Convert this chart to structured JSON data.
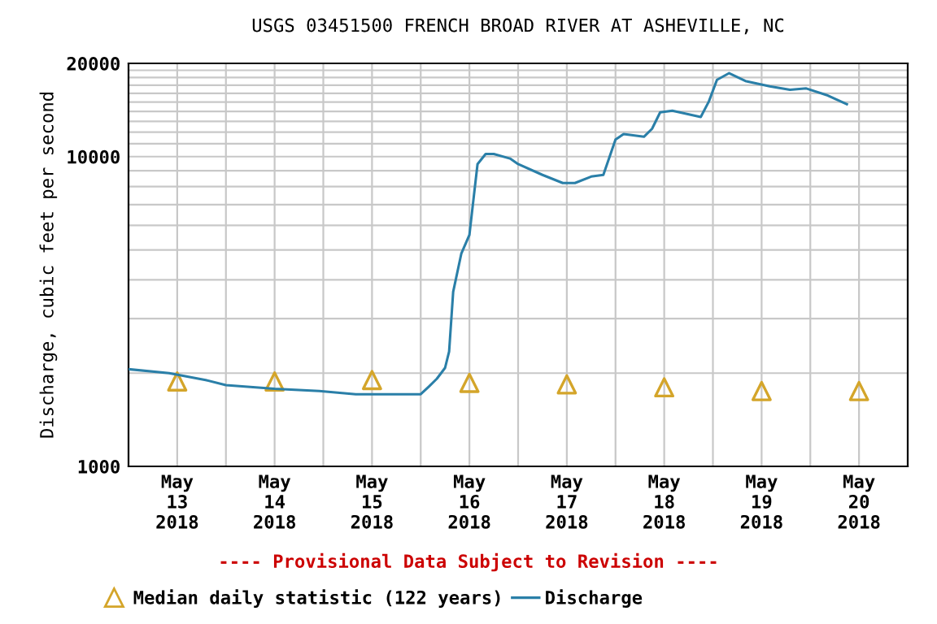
{
  "chart_data": {
    "type": "line",
    "title": "USGS 03451500 FRENCH BROAD RIVER AT ASHEVILLE, NC",
    "ylabel": "Discharge, cubic feet per second",
    "annotations": [
      "---- Provisional Data Subject to Revision ----"
    ],
    "log": "y",
    "grid": true,
    "legend": "bottom",
    "xlim": [
      "2018-05-13T00:00",
      "2018-05-21T00:00"
    ],
    "xticks": [
      {
        "value": "2018-05-13T12:00",
        "label": "May\n13\n2018"
      },
      {
        "value": "2018-05-14T12:00",
        "label": "May\n14\n2018"
      },
      {
        "value": "2018-05-15T12:00",
        "label": "May\n15\n2018"
      },
      {
        "value": "2018-05-16T12:00",
        "label": "May\n16\n2018"
      },
      {
        "value": "2018-05-17T12:00",
        "label": "May\n17\n2018"
      },
      {
        "value": "2018-05-18T12:00",
        "label": "May\n18\n2018"
      },
      {
        "value": "2018-05-19T12:00",
        "label": "May\n19\n2018"
      },
      {
        "value": "2018-05-20T12:00",
        "label": "May\n20\n2018"
      },
      {
        "value": "2018-05-14T00:00",
        "label": null
      },
      {
        "value": "2018-05-15T00:00",
        "label": null
      },
      {
        "value": "2018-05-16T00:00",
        "label": null
      },
      {
        "value": "2018-05-17T00:00",
        "label": null
      },
      {
        "value": "2018-05-18T00:00",
        "label": null
      },
      {
        "value": "2018-05-19T00:00",
        "label": null
      },
      {
        "value": "2018-05-20T00:00",
        "label": null
      }
    ],
    "ylim": [
      1000,
      20000
    ],
    "yticks": [
      1000,
      {
        "value": 2000,
        "label": null
      },
      {
        "value": 3000,
        "label": null
      },
      {
        "value": 4000,
        "label": null
      },
      {
        "value": 5000,
        "label": null
      },
      {
        "value": 6000,
        "label": null
      },
      {
        "value": 7000,
        "label": null
      },
      {
        "value": 8000,
        "label": null
      },
      {
        "value": 9000,
        "label": null
      },
      10000,
      {
        "value": 11000,
        "label": null
      },
      {
        "value": 12000,
        "label": null
      },
      {
        "value": 13000,
        "label": null
      },
      {
        "value": 14000,
        "label": null
      },
      {
        "value": 15000,
        "label": null
      },
      {
        "value": 16000,
        "label": null
      },
      {
        "value": 17000,
        "label": null
      },
      {
        "value": 18000,
        "label": null
      },
      {
        "value": 19000,
        "label": null
      },
      20000
    ],
    "series": [
      {
        "name": "Median daily statistic (122 years)",
        "type": "scatter",
        "marker": "triangle",
        "color": "#d4a52a",
        "x": [
          "2018-05-13T12:00",
          "2018-05-14T12:00",
          "2018-05-15T12:00",
          "2018-05-16T12:00",
          "2018-05-17T12:00",
          "2018-05-18T12:00",
          "2018-05-19T12:00",
          "2018-05-20T12:00"
        ],
        "values": [
          1880,
          1880,
          1900,
          1860,
          1840,
          1800,
          1750,
          1750
        ]
      },
      {
        "name": "Discharge",
        "color": "#2a7fa8",
        "x": [
          "2018-05-13T00:00",
          "2018-05-13T10:00",
          "2018-05-13T19:00",
          "2018-05-14T00:00",
          "2018-05-14T12:00",
          "2018-05-14T23:00",
          "2018-05-15T08:00",
          "2018-05-16T00:00",
          "2018-05-16T02:00",
          "2018-05-16T04:00",
          "2018-05-16T06:00",
          "2018-05-16T07:00",
          "2018-05-16T08:00",
          "2018-05-16T10:00",
          "2018-05-16T12:00",
          "2018-05-16T13:00",
          "2018-05-16T14:00",
          "2018-05-16T16:00",
          "2018-05-16T18:00",
          "2018-05-16T22:00",
          "2018-05-17T00:00",
          "2018-05-17T06:00",
          "2018-05-17T11:00",
          "2018-05-17T14:00",
          "2018-05-17T18:00",
          "2018-05-17T21:00",
          "2018-05-18T00:00",
          "2018-05-18T02:00",
          "2018-05-18T07:00",
          "2018-05-18T09:00",
          "2018-05-18T11:00",
          "2018-05-18T14:00",
          "2018-05-18T21:00",
          "2018-05-18T23:00",
          "2018-05-19T01:00",
          "2018-05-19T04:00",
          "2018-05-19T08:00",
          "2018-05-19T14:00",
          "2018-05-19T19:00",
          "2018-05-19T23:00",
          "2018-05-20T04:00",
          "2018-05-20T09:00"
        ],
        "values": [
          2060,
          2000,
          1900,
          1830,
          1780,
          1750,
          1710,
          1710,
          1810,
          1920,
          2080,
          2350,
          3660,
          4860,
          5590,
          7280,
          9460,
          10200,
          10200,
          9860,
          9460,
          8730,
          8220,
          8220,
          8620,
          8730,
          11350,
          11830,
          11590,
          12300,
          13900,
          14060,
          13430,
          15070,
          17700,
          18600,
          17550,
          16870,
          16440,
          16600,
          15810,
          14760
        ]
      }
    ]
  }
}
